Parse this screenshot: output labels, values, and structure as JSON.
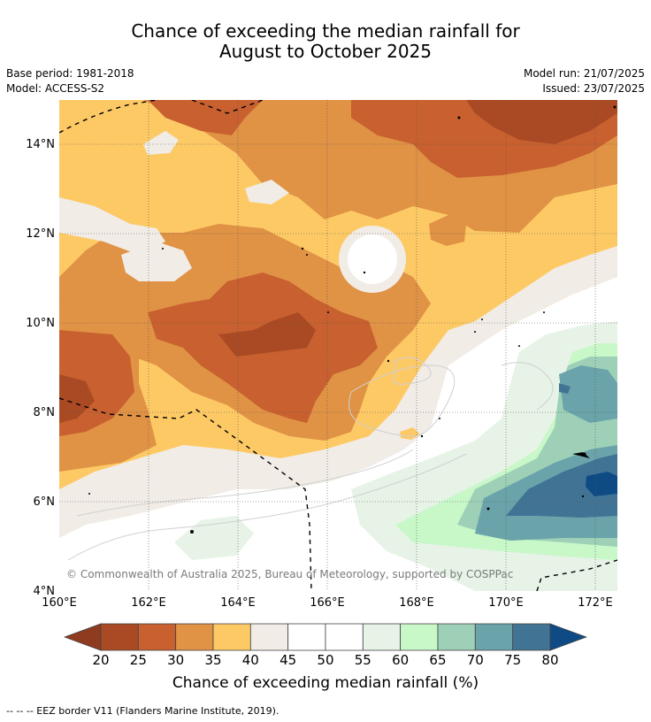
{
  "header": {
    "title_line1": "Chance of exceeding the median rainfall for",
    "title_line2": "August to October 2025",
    "base_period": "Base period: 1981-2018",
    "model": "Model: ACCESS-S2",
    "model_run": "Model run: 21/07/2025",
    "issued": "Issued: 23/07/2025"
  },
  "map": {
    "lat_ticks": [
      "14°N",
      "12°N",
      "10°N",
      "8°N",
      "6°N",
      "4°N"
    ],
    "lon_ticks": [
      "160°E",
      "162°E",
      "164°E",
      "166°E",
      "168°E",
      "170°E",
      "172°E"
    ],
    "credit": "© Commonwealth of Australia 2025, Bureau of Meteorology, supported by COSPPac"
  },
  "colorbar": {
    "labels": [
      "20",
      "25",
      "30",
      "35",
      "40",
      "45",
      "50",
      "55",
      "60",
      "65",
      "70",
      "75",
      "80"
    ],
    "colors": [
      "#a94a24",
      "#c8602f",
      "#e09245",
      "#fdc965",
      "#f1ece6",
      "#ffffff",
      "#ffffff",
      "#e6f3e6",
      "#c8f7c8",
      "#9dd0b7",
      "#6aa3aa",
      "#417494"
    ],
    "low_color": "#8e3b1f",
    "high_color": "#0e4b85",
    "title": "Chance of exceeding median rainfall (%)"
  },
  "footer": {
    "eez_note": "--  --  -- EEZ border V11 (Flanders Marine Institute, 2019)."
  }
}
